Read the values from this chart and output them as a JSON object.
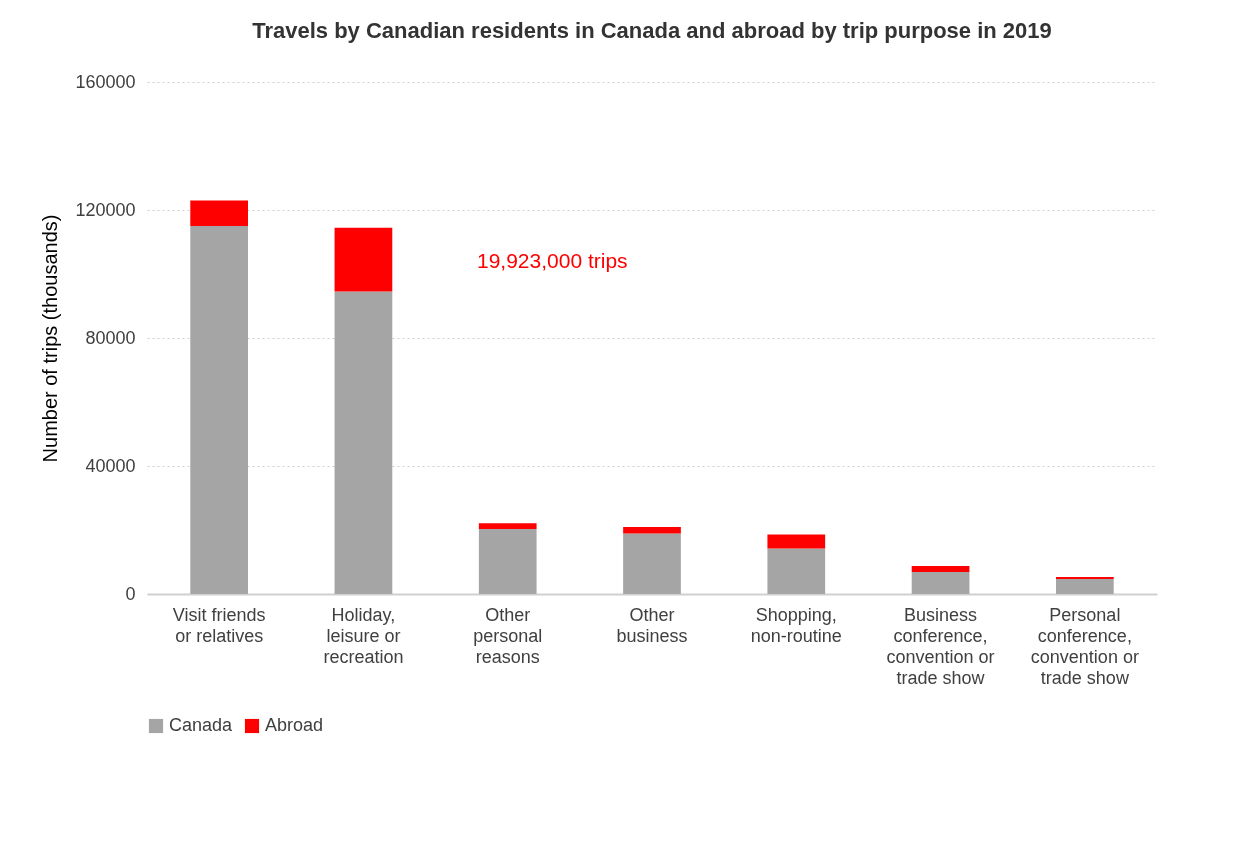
{
  "chart_data": {
    "type": "bar",
    "title": "Travels by Canadian residents in Canada and abroad by trip purpose in 2019",
    "ylabel": "Number of trips  (thousands)",
    "categories": [
      "Visit friends or relatives",
      "Holiday, leisure or recreation",
      "Other personal reasons",
      "Other business",
      "Shopping, non-routine",
      "Business conference, convention or trade show",
      "Personal conference, convention or trade show"
    ],
    "series": [
      {
        "name": "Canada",
        "color": "#a5a5a5",
        "values": [
          115000,
          94500,
          20300,
          18900,
          14200,
          6900,
          4700
        ]
      },
      {
        "name": "Abroad",
        "color": "#ff0000",
        "values": [
          8000,
          19923,
          1800,
          2000,
          4400,
          1850,
          600
        ]
      }
    ],
    "stacked": true,
    "ylim": [
      0,
      160000
    ],
    "yticks": [
      0,
      40000,
      80000,
      120000,
      160000
    ],
    "grid": "y",
    "legend": "bottom",
    "annotations": [
      "19,923,000 trips"
    ]
  }
}
